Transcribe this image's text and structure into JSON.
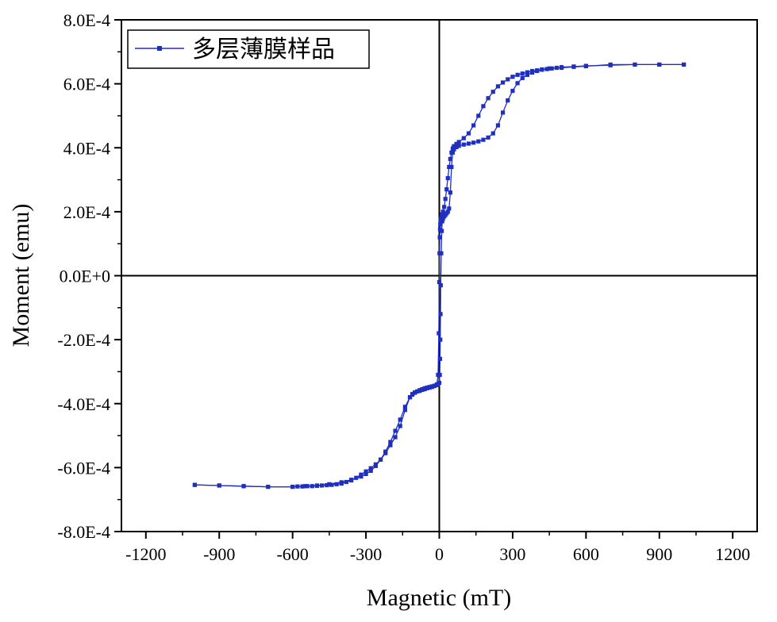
{
  "chart_data": {
    "type": "line",
    "xlabel": "Magnetic (mT)",
    "ylabel": "Moment (emu)",
    "xlim": [
      -1300,
      1300
    ],
    "ylim": [
      -0.0008,
      0.0008
    ],
    "x_ticks": [
      "-1200",
      "-900",
      "-600",
      "-300",
      "0",
      "300",
      "600",
      "900",
      "1200"
    ],
    "y_ticks": [
      "-8.0E-4",
      "-6.0E-4",
      "-4.0E-4",
      "-2.0E-4",
      "0.0E+0",
      "2.0E-4",
      "4.0E-4",
      "6.0E-4",
      "8.0E-4"
    ],
    "grid": false,
    "zero_lines": true,
    "legend_position": "top-left",
    "series": [
      {
        "name": "多层薄膜样品",
        "color": "#1f2fbf",
        "marker": "square",
        "x": [
          1000,
          900,
          800,
          700,
          600,
          550,
          500,
          450,
          420,
          400,
          380,
          360,
          340,
          320,
          300,
          280,
          260,
          240,
          220,
          200,
          180,
          160,
          140,
          120,
          100,
          80,
          70,
          60,
          55,
          50,
          45,
          40,
          35,
          30,
          25,
          20,
          15,
          12,
          10,
          8,
          6,
          5,
          4,
          3,
          2,
          1,
          0,
          -2,
          -5,
          -10,
          -20,
          -30,
          -40,
          -50,
          -60,
          -70,
          -80,
          -90,
          -100,
          -110,
          -120,
          -140,
          -160,
          -180,
          -200,
          -220,
          -240,
          -260,
          -280,
          -300,
          -320,
          -340,
          -360,
          -380,
          -400,
          -420,
          -440,
          -460,
          -480,
          -500,
          -520,
          -540,
          -560,
          -580,
          -600,
          -700,
          -800,
          -900,
          -1000
        ],
        "y": [
          0.00066,
          0.00066,
          0.00066,
          0.00066,
          0.000655,
          0.000653,
          0.00065,
          0.000648,
          0.000645,
          0.000642,
          0.00064,
          0.000636,
          0.000632,
          0.000628,
          0.000622,
          0.000614,
          0.000604,
          0.000592,
          0.000575,
          0.000555,
          0.00053,
          0.0005,
          0.00047,
          0.000445,
          0.00043,
          0.000418,
          0.000412,
          0.000405,
          0.000398,
          0.000385,
          0.000365,
          0.00034,
          0.000305,
          0.00027,
          0.00024,
          0.000215,
          0.0002,
          0.000192,
          0.000185,
          0.00018,
          0.000175,
          0.000168,
          0.00016,
          0.000145,
          0.00012,
          7e-05,
          -2e-05,
          -0.00018,
          -0.00031,
          -0.00034,
          -0.000345,
          -0.000348,
          -0.00035,
          -0.000352,
          -0.000355,
          -0.000357,
          -0.00036,
          -0.000362,
          -0.000365,
          -0.00037,
          -0.00038,
          -0.00042,
          -0.00047,
          -0.000505,
          -0.00053,
          -0.000555,
          -0.000575,
          -0.00059,
          -0.000602,
          -0.000612,
          -0.000622,
          -0.000632,
          -0.00064,
          -0.000645,
          -0.00065,
          -0.000652,
          -0.000654,
          -0.000655,
          -0.000656,
          -0.000657,
          -0.000658,
          -0.000658,
          -0.000659,
          -0.000659,
          -0.00066,
          -0.00066,
          -0.000658,
          -0.000656,
          -0.000654
        ]
      },
      {
        "name": "",
        "color": "#1f2fbf",
        "marker": "square",
        "x": [
          -1000,
          -900,
          -800,
          -700,
          -600,
          -550,
          -500,
          -450,
          -400,
          -360,
          -320,
          -300,
          -280,
          -260,
          -240,
          -220,
          -200,
          -180,
          -160,
          -140,
          -120,
          -110,
          -100,
          -90,
          -80,
          -70,
          -60,
          -50,
          -40,
          -30,
          -20,
          -10,
          -5,
          0,
          2,
          3,
          4,
          5,
          6,
          8,
          10,
          12,
          15,
          20,
          25,
          30,
          35,
          40,
          45,
          50,
          55,
          60,
          70,
          80,
          100,
          120,
          140,
          160,
          180,
          200,
          220,
          240,
          260,
          280,
          300,
          320,
          340,
          360,
          380,
          400,
          420,
          440,
          460,
          480,
          500,
          550,
          600,
          700,
          800,
          900,
          1000
        ],
        "y": [
          -0.000654,
          -0.000656,
          -0.000658,
          -0.00066,
          -0.00066,
          -0.000658,
          -0.000656,
          -0.000652,
          -0.000646,
          -0.000638,
          -0.000628,
          -0.00062,
          -0.00061,
          -0.000595,
          -0.000575,
          -0.00055,
          -0.00052,
          -0.000485,
          -0.00045,
          -0.00041,
          -0.00038,
          -0.000372,
          -0.000366,
          -0.000362,
          -0.000358,
          -0.000355,
          -0.000352,
          -0.00035,
          -0.000348,
          -0.000346,
          -0.000344,
          -0.000342,
          -0.00034,
          -0.000335,
          -0.00031,
          -0.00026,
          -0.0002,
          -0.00012,
          -3e-05,
          7e-05,
          0.00014,
          0.00017,
          0.000178,
          0.000185,
          0.00019,
          0.000195,
          0.0002,
          0.00021,
          0.00026,
          0.00034,
          0.000385,
          0.000395,
          0.000402,
          0.000406,
          0.00041,
          0.000413,
          0.000416,
          0.00042,
          0.000425,
          0.000432,
          0.000445,
          0.00047,
          0.00051,
          0.000548,
          0.000578,
          0.000602,
          0.000618,
          0.000628,
          0.000635,
          0.00064,
          0.000644,
          0.000646,
          0.000648,
          0.00065,
          0.000652,
          0.000654,
          0.000656,
          0.000658,
          0.00066,
          0.00066,
          0.00066
        ]
      }
    ]
  }
}
